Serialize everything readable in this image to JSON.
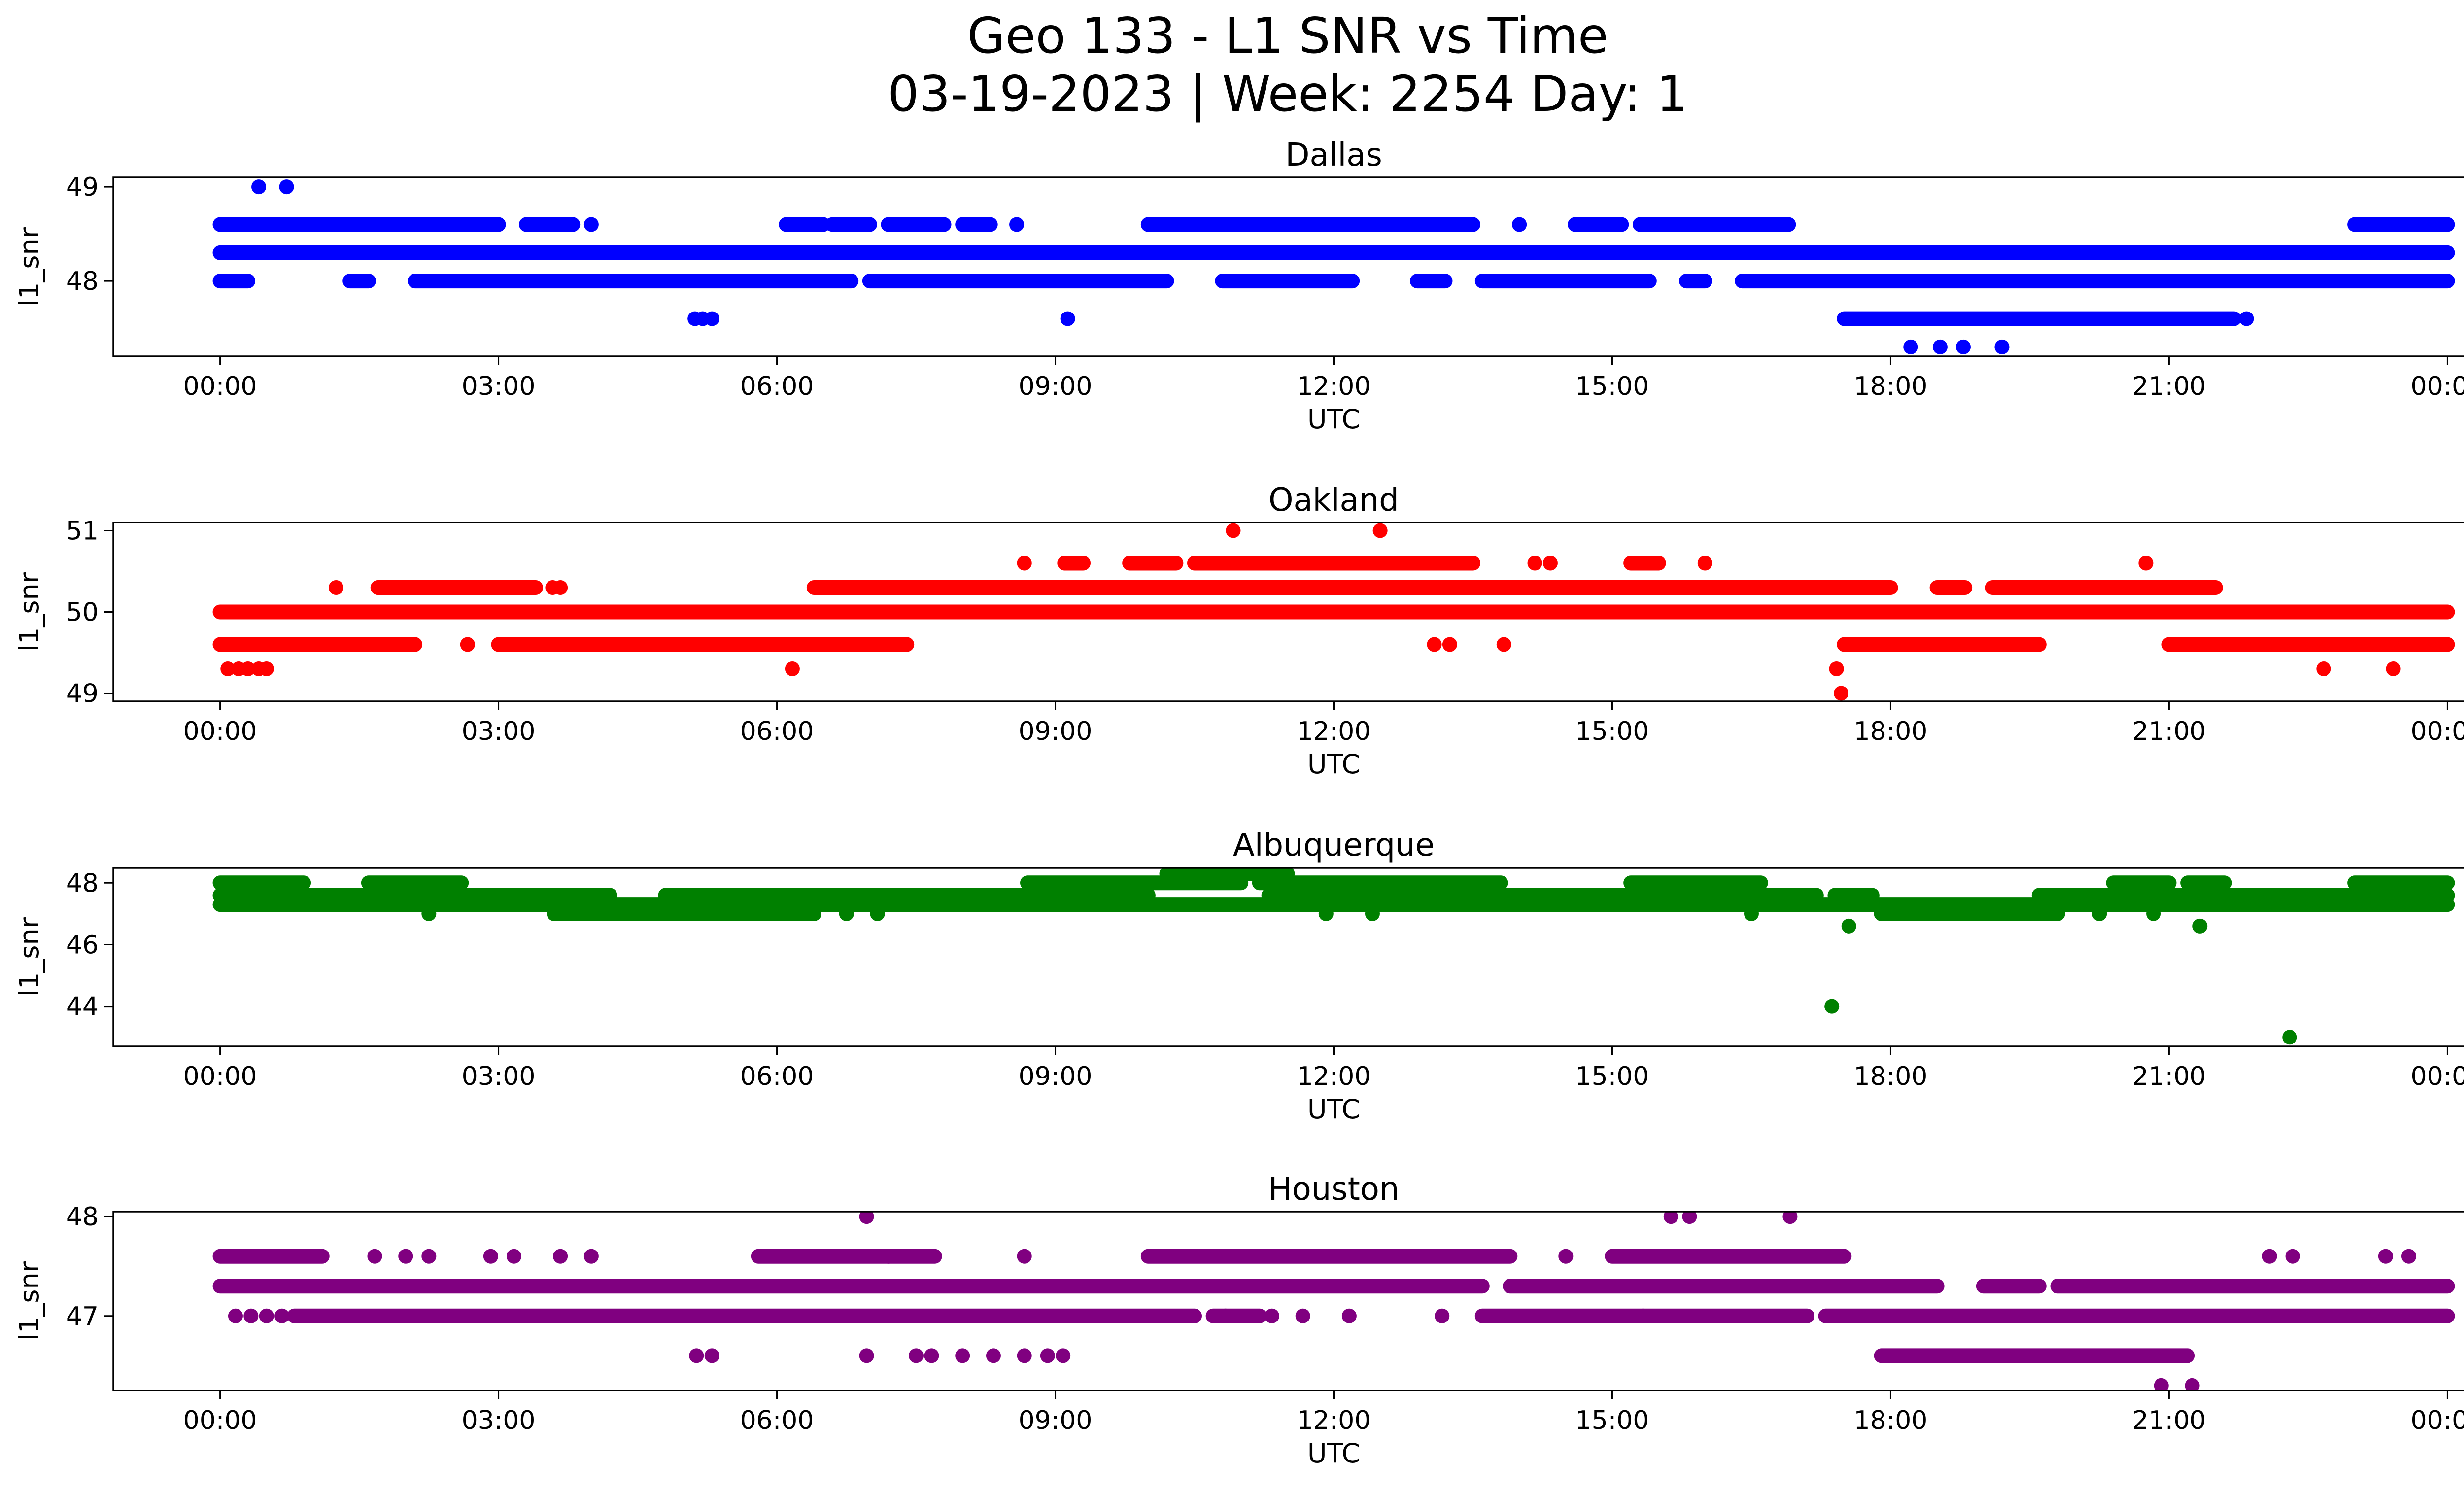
{
  "figure": {
    "title_line1": "Geo 133 - L1 SNR vs Time",
    "title_line2": "03-19-2023 | Week: 2254 Day: 1"
  },
  "chart_data": [
    {
      "type": "scatter",
      "title": "Dallas",
      "xlabel": "UTC",
      "ylabel": "l1_snr",
      "color": "#0000ff",
      "xticks": [
        "00:00",
        "03:00",
        "06:00",
        "09:00",
        "12:00",
        "15:00",
        "18:00",
        "21:00",
        "00:00"
      ],
      "yticks": [
        48,
        49
      ],
      "ylim": [
        47.2,
        49.1
      ],
      "xlim_hours": [
        -1.15,
        25.15
      ],
      "series": [
        {
          "y": 48.3,
          "segments": [
            [
              0,
              24
            ]
          ]
        },
        {
          "y": 48.0,
          "segments": [
            [
              0.0,
              0.3
            ],
            [
              1.4,
              1.6
            ],
            [
              2.1,
              6.8
            ],
            [
              7.0,
              10.2
            ],
            [
              10.8,
              12.2
            ],
            [
              12.9,
              13.2
            ],
            [
              13.6,
              15.4
            ],
            [
              15.8,
              16.0
            ],
            [
              16.4,
              24.0
            ]
          ]
        },
        {
          "y": 48.6,
          "segments": [
            [
              0.0,
              3.0
            ],
            [
              3.3,
              3.8
            ],
            [
              6.1,
              6.5
            ],
            [
              6.6,
              7.0
            ],
            [
              7.2,
              7.8
            ],
            [
              8.0,
              8.3
            ],
            [
              10.0,
              13.5
            ],
            [
              14.6,
              15.1
            ],
            [
              15.3,
              16.9
            ],
            [
              23.0,
              24.0
            ]
          ]
        },
        {
          "y": 47.6,
          "segments": [
            [
              17.5,
              21.7
            ]
          ]
        },
        {
          "y": 49.0,
          "points": [
            "00:25",
            "00:43"
          ]
        },
        {
          "y": 48.6,
          "points": [
            "04:00",
            "08:35",
            "14:00"
          ]
        },
        {
          "y": 47.6,
          "points": [
            "05:07",
            "05:12",
            "05:18",
            "09:08",
            "21:50"
          ]
        },
        {
          "y": 47.3,
          "points": [
            "18:13",
            "18:32",
            "18:47",
            "19:12"
          ]
        }
      ]
    },
    {
      "type": "scatter",
      "title": "Oakland",
      "xlabel": "UTC",
      "ylabel": "l1_snr",
      "color": "#ff0000",
      "xticks": [
        "00:00",
        "03:00",
        "06:00",
        "09:00",
        "12:00",
        "15:00",
        "18:00",
        "21:00",
        "00:00"
      ],
      "yticks": [
        49,
        50,
        51
      ],
      "ylim": [
        48.9,
        51.1
      ],
      "xlim_hours": [
        -1.15,
        25.15
      ],
      "series": [
        {
          "y": 50.0,
          "segments": [
            [
              0,
              24
            ]
          ]
        },
        {
          "y": 49.6,
          "segments": [
            [
              0.0,
              2.1
            ],
            [
              3.0,
              7.4
            ],
            [
              17.5,
              19.6
            ],
            [
              21.0,
              24.0
            ]
          ]
        },
        {
          "y": 50.3,
          "segments": [
            [
              1.7,
              3.4
            ],
            [
              6.4,
              18.0
            ],
            [
              18.5,
              18.8
            ],
            [
              19.1,
              21.5
            ]
          ]
        },
        {
          "y": 50.6,
          "segments": [
            [
              9.1,
              9.3
            ],
            [
              9.8,
              10.3
            ],
            [
              10.5,
              13.5
            ],
            [
              15.2,
              15.5
            ]
          ]
        },
        {
          "y": 49.3,
          "points": [
            "00:05",
            "00:12",
            "00:18",
            "00:25",
            "00:30",
            "06:10",
            "17:25",
            "22:40",
            "23:25"
          ]
        },
        {
          "y": 51.0,
          "points": [
            "10:55",
            "12:30"
          ]
        },
        {
          "y": 50.6,
          "points": [
            "08:40",
            "14:10",
            "14:20",
            "16:00",
            "20:45"
          ]
        },
        {
          "y": 49.6,
          "points": [
            "02:40",
            "13:05",
            "13:15",
            "13:50"
          ]
        },
        {
          "y": 49.0,
          "points": [
            "17:28"
          ]
        },
        {
          "y": 50.3,
          "points": [
            "01:15",
            "03:35",
            "03:40"
          ]
        }
      ]
    },
    {
      "type": "scatter",
      "title": "Albuquerque",
      "xlabel": "UTC",
      "ylabel": "l1_snr",
      "color": "#008000",
      "xticks": [
        "00:00",
        "03:00",
        "06:00",
        "09:00",
        "12:00",
        "15:00",
        "18:00",
        "21:00",
        "00:00"
      ],
      "yticks": [
        44,
        46,
        48
      ],
      "ylim": [
        42.7,
        48.5
      ],
      "xlim_hours": [
        -1.15,
        25.15
      ],
      "series": [
        {
          "y": 47.3,
          "segments": [
            [
              0,
              24
            ]
          ]
        },
        {
          "y": 47.6,
          "segments": [
            [
              0.0,
              4.2
            ],
            [
              4.8,
              10.0
            ],
            [
              11.3,
              17.2
            ],
            [
              17.4,
              17.8
            ],
            [
              19.6,
              24.0
            ]
          ]
        },
        {
          "y": 48.0,
          "segments": [
            [
              0.0,
              0.9
            ],
            [
              1.6,
              2.6
            ],
            [
              8.7,
              11.0
            ],
            [
              11.2,
              13.8
            ],
            [
              15.2,
              16.6
            ],
            [
              20.4,
              21.0
            ],
            [
              21.2,
              21.6
            ],
            [
              23.0,
              24.0
            ]
          ]
        },
        {
          "y": 48.3,
          "segments": [
            [
              10.2,
              11.5
            ]
          ]
        },
        {
          "y": 47.0,
          "segments": [
            [
              3.6,
              6.4
            ],
            [
              17.9,
              19.8
            ]
          ]
        },
        {
          "y": 46.6,
          "points": [
            "17:33",
            "21:20"
          ]
        },
        {
          "y": 44.0,
          "points": [
            "17:22"
          ]
        },
        {
          "y": 43.0,
          "points": [
            "22:18"
          ]
        },
        {
          "y": 47.0,
          "points": [
            "02:15",
            "03:40",
            "06:45",
            "07:05",
            "11:55",
            "12:25",
            "16:30",
            "20:15",
            "20:50"
          ]
        }
      ]
    },
    {
      "type": "scatter",
      "title": "Houston",
      "xlabel": "UTC",
      "ylabel": "l1_snr",
      "color": "#800080",
      "xticks": [
        "00:00",
        "03:00",
        "06:00",
        "09:00",
        "12:00",
        "15:00",
        "18:00",
        "21:00",
        "00:00"
      ],
      "yticks": [
        47,
        48
      ],
      "ylim": [
        46.25,
        48.05
      ],
      "xlim_hours": [
        -1.15,
        25.15
      ],
      "series": [
        {
          "y": 47.3,
          "segments": [
            [
              0.0,
              13.6
            ],
            [
              13.9,
              18.5
            ],
            [
              19.0,
              19.6
            ],
            [
              19.8,
              24.0
            ]
          ]
        },
        {
          "y": 47.0,
          "segments": [
            [
              0.8,
              10.5
            ],
            [
              10.7,
              11.2
            ],
            [
              13.6,
              17.1
            ],
            [
              17.3,
              24.0
            ]
          ]
        },
        {
          "y": 47.6,
          "segments": [
            [
              0.0,
              1.1
            ],
            [
              5.8,
              7.2
            ],
            [
              7.2,
              7.7
            ],
            [
              10.0,
              13.9
            ],
            [
              15.0,
              17.5
            ]
          ]
        },
        {
          "y": 46.6,
          "segments": [
            [
              17.9,
              21.2
            ]
          ]
        },
        {
          "y": 48.0,
          "points": [
            "06:58",
            "15:38",
            "15:50",
            "16:55"
          ]
        },
        {
          "y": 46.3,
          "points": [
            "20:55",
            "21:15"
          ]
        },
        {
          "y": 46.6,
          "points": [
            "05:08",
            "05:18",
            "06:58",
            "07:30",
            "07:40",
            "08:00",
            "08:20",
            "08:40",
            "08:55",
            "09:05"
          ]
        },
        {
          "y": 47.6,
          "points": [
            "01:40",
            "02:00",
            "02:15",
            "02:55",
            "03:10",
            "03:40",
            "04:00",
            "08:40",
            "14:30",
            "22:05",
            "22:20",
            "23:20",
            "23:35"
          ]
        },
        {
          "y": 47.0,
          "points": [
            "00:10",
            "00:20",
            "00:30",
            "00:40",
            "10:50",
            "11:20",
            "11:40",
            "12:10",
            "13:10",
            "15:20"
          ]
        }
      ]
    }
  ]
}
